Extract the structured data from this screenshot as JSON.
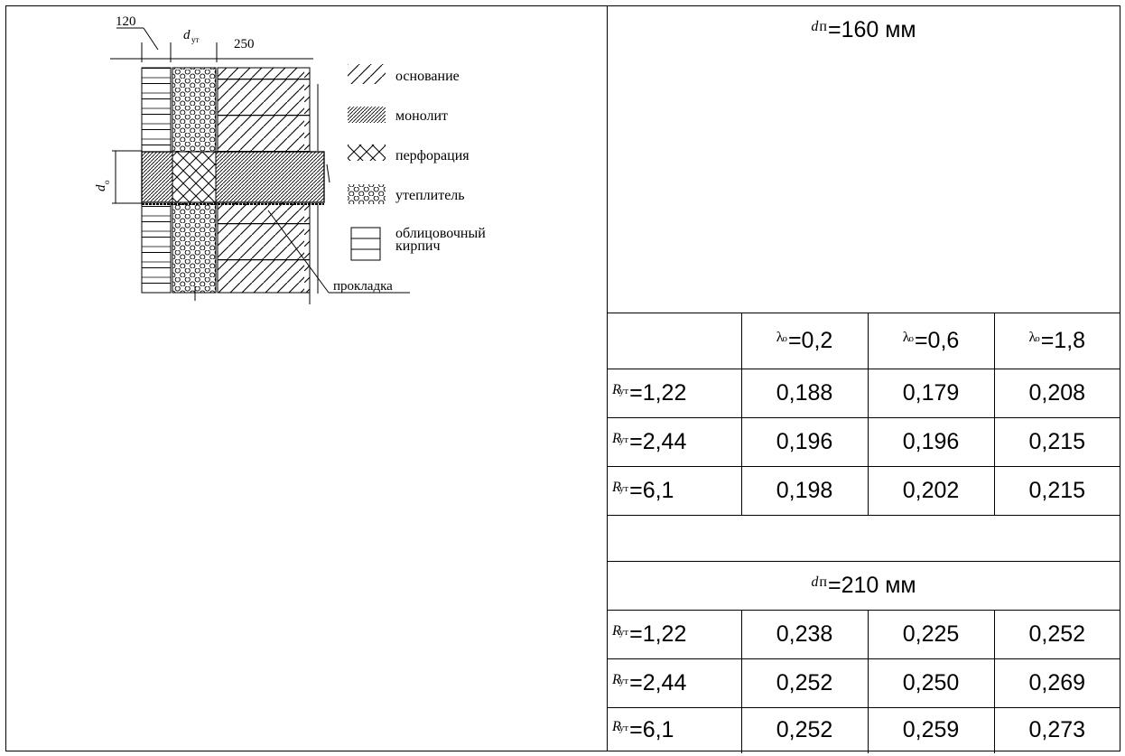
{
  "drawing": {
    "dim_left": "120",
    "dim_insul": "d",
    "dim_insul_sub": "ут",
    "dim_right": "250",
    "dim_vertical": "d",
    "dim_vertical_sub": "о",
    "callout": "прокладка",
    "legend": [
      {
        "pattern": "sparse-hatch",
        "label": "основание"
      },
      {
        "pattern": "dense-hatch",
        "label": "монолит"
      },
      {
        "pattern": "cross-hatch",
        "label": "перфорация"
      },
      {
        "pattern": "circles",
        "label": "утеплитель"
      },
      {
        "pattern": "brick",
        "label": "облицовочный кирпич"
      }
    ]
  },
  "table": {
    "section1": {
      "symbol": "d",
      "symbol_sub": "п",
      "value": "=160 мм"
    },
    "columns": [
      {
        "symbol": "λ",
        "sub": "о",
        "value": "=0,2"
      },
      {
        "symbol": "λ",
        "sub": "о",
        "value": "=0,6"
      },
      {
        "symbol": "λ",
        "sub": "о",
        "value": "=1,8"
      }
    ],
    "rows1": [
      {
        "sym": "R",
        "sub": "ут",
        "label": "=1,22",
        "values": [
          "0,188",
          "0,179",
          "0,208"
        ]
      },
      {
        "sym": "R",
        "sub": "ут",
        "label": "=2,44",
        "values": [
          "0,196",
          "0,196",
          "0,215"
        ]
      },
      {
        "sym": "R",
        "sub": "ут",
        "label": "=6,1",
        "values": [
          "0,198",
          "0,202",
          "0,215"
        ]
      }
    ],
    "section2": {
      "symbol": "d",
      "symbol_sub": "п",
      "value": "=210 мм"
    },
    "rows2": [
      {
        "sym": "R",
        "sub": "ут",
        "label": "=1,22",
        "values": [
          "0,238",
          "0,225",
          "0,252"
        ]
      },
      {
        "sym": "R",
        "sub": "ут",
        "label": "=2,44",
        "values": [
          "0,252",
          "0,250",
          "0,269"
        ]
      },
      {
        "sym": "R",
        "sub": "ут",
        "label": "=6,1",
        "values": [
          "0,252",
          "0,259",
          "0,273"
        ]
      }
    ]
  }
}
